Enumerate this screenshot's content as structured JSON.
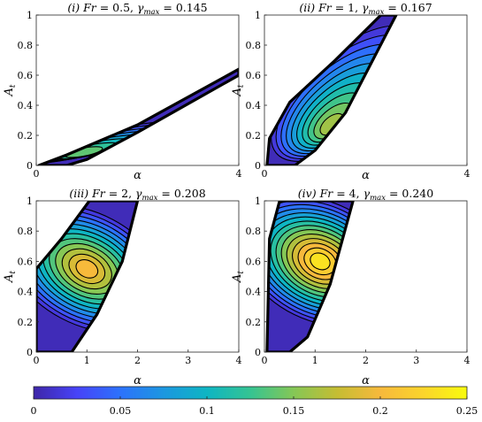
{
  "chart_data": [
    {
      "type": "contour",
      "panel_label": "(i)",
      "title": "(i) Fr = 0.5, γmax = 0.145",
      "title_prefix": "(i) ",
      "param_name": "Fr",
      "param_value": "0.5",
      "gamma_name": "γ",
      "gamma_sub": "max",
      "gamma_value": "0.145",
      "xlabel": "α",
      "ylabel": "At",
      "ylabel_main": "A",
      "ylabel_sub": "t",
      "xlim": [
        0,
        4
      ],
      "ylim": [
        0,
        1
      ],
      "xticks": [
        "0",
        "4"
      ],
      "yticks": [
        "0",
        "0.2",
        "0.4",
        "0.6",
        "0.8",
        "1"
      ],
      "peak": {
        "alpha": 0.9,
        "At": 0.08
      },
      "unstable_region_boundary": [
        [
          0.05,
          0.0
        ],
        [
          0.6,
          0.07
        ],
        [
          2.0,
          0.27
        ],
        [
          4.0,
          0.64
        ],
        [
          4.0,
          0.6
        ],
        [
          2.0,
          0.22
        ],
        [
          1.0,
          0.04
        ],
        [
          0.6,
          0.0
        ]
      ]
    },
    {
      "type": "contour",
      "panel_label": "(ii)",
      "title": "(ii) Fr = 1, γmax = 0.167",
      "title_prefix": "(ii) ",
      "param_name": "Fr",
      "param_value": "1",
      "gamma_name": "γ",
      "gamma_sub": "max",
      "gamma_value": "0.167",
      "xlabel": "α",
      "ylabel": "At",
      "ylabel_main": "A",
      "ylabel_sub": "t",
      "xlim": [
        0,
        4
      ],
      "ylim": [
        0,
        1
      ],
      "xticks": [
        "0",
        "4"
      ],
      "yticks": [
        "0",
        "0.2",
        "0.4",
        "0.6",
        "0.8",
        "1"
      ],
      "peak": {
        "alpha": 1.3,
        "At": 0.25
      },
      "unstable_region_boundary": [
        [
          0.05,
          0.0
        ],
        [
          0.1,
          0.18
        ],
        [
          0.5,
          0.42
        ],
        [
          1.4,
          0.7
        ],
        [
          2.3,
          1.0
        ],
        [
          2.6,
          1.0
        ],
        [
          1.6,
          0.35
        ],
        [
          1.0,
          0.1
        ],
        [
          0.6,
          0.0
        ]
      ]
    },
    {
      "type": "contour",
      "panel_label": "(iii)",
      "title": "(iii) Fr = 2, γmax = 0.208",
      "title_prefix": "(iii) ",
      "param_name": "Fr",
      "param_value": "2",
      "gamma_name": "γ",
      "gamma_sub": "max",
      "gamma_value": "0.208",
      "xlabel": "α",
      "ylabel": "At",
      "ylabel_main": "A",
      "ylabel_sub": "t",
      "xlim": [
        0,
        4
      ],
      "ylim": [
        0,
        1
      ],
      "xticks": [
        "0",
        "1",
        "2",
        "3",
        "4"
      ],
      "yticks": [
        "0",
        "0.2",
        "0.4",
        "0.6",
        "0.8",
        "1"
      ],
      "peak": {
        "alpha": 1.0,
        "At": 0.55
      },
      "unstable_region_boundary": [
        [
          0.0,
          0.0
        ],
        [
          0.0,
          0.55
        ],
        [
          0.5,
          0.75
        ],
        [
          1.05,
          1.0
        ],
        [
          2.0,
          1.0
        ],
        [
          1.7,
          0.6
        ],
        [
          1.2,
          0.25
        ],
        [
          0.7,
          0.0
        ]
      ]
    },
    {
      "type": "contour",
      "panel_label": "(iv)",
      "title": "(iv) Fr = 4, γmax = 0.240",
      "title_prefix": "(iv) ",
      "param_name": "Fr",
      "param_value": "4",
      "gamma_name": "γ",
      "gamma_sub": "max",
      "gamma_value": "0.240",
      "xlabel": "α",
      "ylabel": "At",
      "ylabel_main": "A",
      "ylabel_sub": "t",
      "xlim": [
        0,
        4
      ],
      "ylim": [
        0,
        1
      ],
      "xticks": [
        "0",
        "1",
        "2",
        "3",
        "4"
      ],
      "yticks": [
        "0",
        "0.2",
        "0.4",
        "0.6",
        "0.8",
        "1"
      ],
      "peak": {
        "alpha": 1.1,
        "At": 0.6
      },
      "unstable_region_boundary": [
        [
          0.05,
          0.0
        ],
        [
          0.1,
          0.75
        ],
        [
          0.3,
          1.0
        ],
        [
          1.75,
          1.0
        ],
        [
          1.3,
          0.45
        ],
        [
          0.85,
          0.1
        ],
        [
          0.5,
          0.0
        ]
      ]
    }
  ],
  "colorbar": {
    "ticks": [
      "0",
      "0.05",
      "0.1",
      "0.15",
      "0.2",
      "0.25"
    ],
    "range": [
      0,
      0.25
    ],
    "colormap": [
      "#3e26a8",
      "#4743f8",
      "#2c72fc",
      "#1c97e0",
      "#0eb5c3",
      "#35c492",
      "#85c756",
      "#c5bd33",
      "#f7b93c",
      "#fbd52b",
      "#f9fb0e"
    ]
  }
}
